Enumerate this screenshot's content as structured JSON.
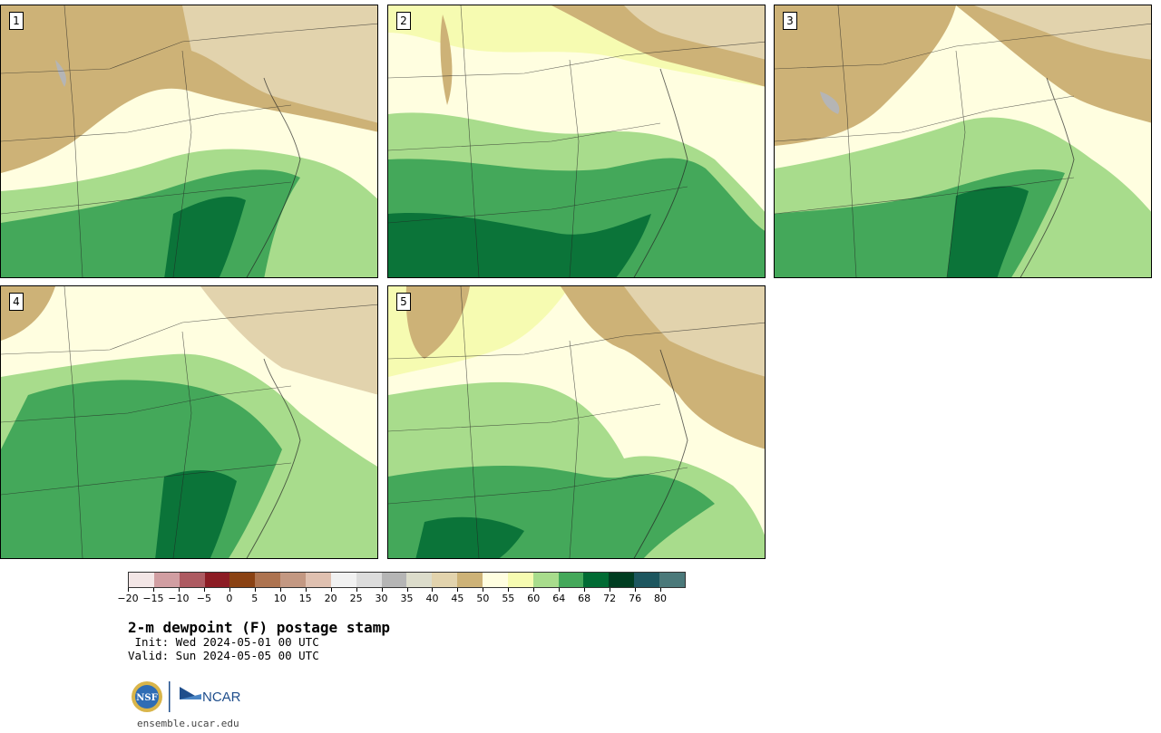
{
  "panels": [
    {
      "label": "1",
      "green": "south",
      "notes": "dry north, moist southeast"
    },
    {
      "label": "2",
      "green": "south-broad"
    },
    {
      "label": "3",
      "green": "south"
    },
    {
      "label": "4",
      "green": "central"
    },
    {
      "label": "5",
      "green": "south"
    }
  ],
  "colorbar": {
    "colors": [
      "#f3e6e6",
      "#d19ea2",
      "#ad5a61",
      "#8c1c24",
      "#8a4213",
      "#ad7350",
      "#c39882",
      "#dfc0b0",
      "#f1f1f1",
      "#dcdcdc",
      "#b5b5b5",
      "#dcdccb",
      "#e2d3ad",
      "#cdb277",
      "#fffee0",
      "#f6fbb1",
      "#a8dc8c",
      "#44a85a",
      "#016b34",
      "#003d21",
      "#1d565f",
      "#4b797a"
    ],
    "tick_labels": [
      "−20",
      "−15",
      "−10",
      "−5",
      "0",
      "5",
      "10",
      "15",
      "20",
      "25",
      "30",
      "35",
      "40",
      "45",
      "50",
      "55",
      "60",
      "64",
      "68",
      "72",
      "76",
      "80"
    ]
  },
  "title": "2-m dewpoint (F) postage stamp",
  "init": " Init: Wed 2024-05-01 00 UTC",
  "valid": "Valid: Sun 2024-05-05 00 UTC",
  "logos": {
    "nsf": "NSF",
    "ncar": "NCAR"
  },
  "url": "ensemble.ucar.edu"
}
